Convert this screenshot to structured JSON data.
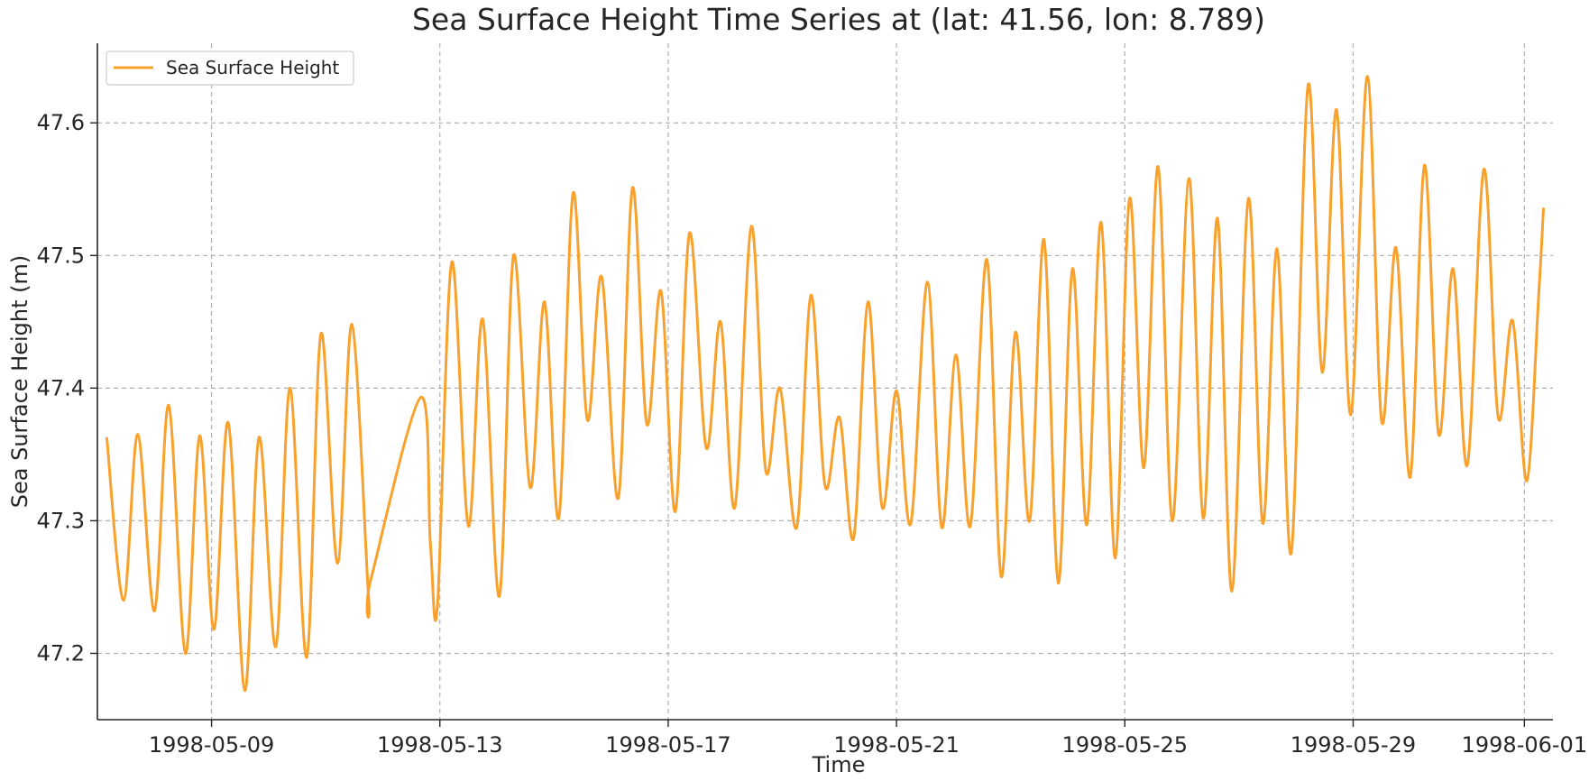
{
  "chart_data": {
    "type": "line",
    "title": "Sea Surface Height Time Series at (lat: 41.56, lon: 8.789)",
    "xlabel": "Time",
    "ylabel": "Sea Surface Height (m)",
    "x_ticks": [
      "1998-05-09",
      "1998-05-13",
      "1998-05-17",
      "1998-05-21",
      "1998-05-25",
      "1998-05-29",
      "1998-06-01"
    ],
    "y_ticks": [
      "47.2",
      "47.3",
      "47.4",
      "47.5",
      "47.6"
    ],
    "xlim": [
      "1998-05-07T00:00",
      "1998-06-01T12:00"
    ],
    "ylim": [
      47.15,
      47.66
    ],
    "grid": true,
    "legend": "upper left",
    "series": [
      {
        "name": "Sea Surface Height",
        "color": "#f9a12d",
        "points": [
          [
            "1998-05-07T04:00",
            47.362
          ],
          [
            "1998-05-07T11:00",
            47.24
          ],
          [
            "1998-05-07T17:00",
            47.365
          ],
          [
            "1998-05-08T00:00",
            47.232
          ],
          [
            "1998-05-08T06:00",
            47.387
          ],
          [
            "1998-05-08T13:00",
            47.2
          ],
          [
            "1998-05-08T19:00",
            47.364
          ],
          [
            "1998-05-09T01:00",
            47.218
          ],
          [
            "1998-05-09T07:00",
            47.374
          ],
          [
            "1998-05-09T14:00",
            47.172
          ],
          [
            "1998-05-09T20:00",
            47.363
          ],
          [
            "1998-05-10T03:00",
            47.205
          ],
          [
            "1998-05-10T09:00",
            47.4
          ],
          [
            "1998-05-10T16:00",
            47.197
          ],
          [
            "1998-05-10T22:00",
            47.441
          ],
          [
            "1998-05-11T05:00",
            47.268
          ],
          [
            "1998-05-11T11:00",
            47.448
          ],
          [
            "1998-05-11T18:00",
            47.244
          ],
          [
            "1998-05-11T19:00",
            47.256
          ],
          [
            "1998-05-12T16:00",
            47.393
          ],
          [
            "1998-05-12T20:00",
            47.283
          ],
          [
            "1998-05-12T23:00",
            47.236
          ],
          [
            "1998-05-13T05:00",
            47.495
          ],
          [
            "1998-05-13T12:00",
            47.296
          ],
          [
            "1998-05-13T18:00",
            47.452
          ],
          [
            "1998-05-14T01:00",
            47.243
          ],
          [
            "1998-05-14T07:00",
            47.5
          ],
          [
            "1998-05-14T14:00",
            47.325
          ],
          [
            "1998-05-14T20:00",
            47.465
          ],
          [
            "1998-05-15T02:00",
            47.302
          ],
          [
            "1998-05-15T08:00",
            47.547
          ],
          [
            "1998-05-15T14:00",
            47.376
          ],
          [
            "1998-05-15T20:00",
            47.484
          ],
          [
            "1998-05-16T03:00",
            47.317
          ],
          [
            "1998-05-16T09:00",
            47.551
          ],
          [
            "1998-05-16T15:00",
            47.373
          ],
          [
            "1998-05-16T21:00",
            47.473
          ],
          [
            "1998-05-17T03:00",
            47.307
          ],
          [
            "1998-05-17T09:00",
            47.517
          ],
          [
            "1998-05-17T16:00",
            47.355
          ],
          [
            "1998-05-17T22:00",
            47.45
          ],
          [
            "1998-05-18T04:00",
            47.31
          ],
          [
            "1998-05-18T11:00",
            47.522
          ],
          [
            "1998-05-18T17:00",
            47.338
          ],
          [
            "1998-05-18T23:00",
            47.4
          ],
          [
            "1998-05-19T06:00",
            47.295
          ],
          [
            "1998-05-19T12:00",
            47.47
          ],
          [
            "1998-05-19T18:00",
            47.326
          ],
          [
            "1998-05-20T00:00",
            47.378
          ],
          [
            "1998-05-20T06:00",
            47.287
          ],
          [
            "1998-05-20T12:00",
            47.465
          ],
          [
            "1998-05-20T18:00",
            47.31
          ],
          [
            "1998-05-21T00:00",
            47.398
          ],
          [
            "1998-05-21T06:00",
            47.298
          ],
          [
            "1998-05-21T13:00",
            47.48
          ],
          [
            "1998-05-21T19:00",
            47.295
          ],
          [
            "1998-05-22T01:00",
            47.425
          ],
          [
            "1998-05-22T07:00",
            47.296
          ],
          [
            "1998-05-22T14:00",
            47.497
          ],
          [
            "1998-05-22T20:00",
            47.258
          ],
          [
            "1998-05-23T02:00",
            47.442
          ],
          [
            "1998-05-23T08:00",
            47.3
          ],
          [
            "1998-05-23T14:00",
            47.512
          ],
          [
            "1998-05-23T20:00",
            47.253
          ],
          [
            "1998-05-24T02:00",
            47.49
          ],
          [
            "1998-05-24T08:00",
            47.297
          ],
          [
            "1998-05-24T14:00",
            47.525
          ],
          [
            "1998-05-24T20:00",
            47.272
          ],
          [
            "1998-05-25T02:00",
            47.543
          ],
          [
            "1998-05-25T08:00",
            47.34
          ],
          [
            "1998-05-25T14:00",
            47.567
          ],
          [
            "1998-05-25T20:00",
            47.3
          ],
          [
            "1998-05-26T03:00",
            47.558
          ],
          [
            "1998-05-26T09:00",
            47.302
          ],
          [
            "1998-05-26T15:00",
            47.528
          ],
          [
            "1998-05-26T21:00",
            47.247
          ],
          [
            "1998-05-27T04:00",
            47.543
          ],
          [
            "1998-05-27T10:00",
            47.298
          ],
          [
            "1998-05-27T16:00",
            47.505
          ],
          [
            "1998-05-27T22:00",
            47.276
          ],
          [
            "1998-05-28T05:00",
            47.628
          ],
          [
            "1998-05-28T11:00",
            47.412
          ],
          [
            "1998-05-28T17:00",
            47.61
          ],
          [
            "1998-05-28T23:00",
            47.38
          ],
          [
            "1998-05-29T06:00",
            47.635
          ],
          [
            "1998-05-29T12:00",
            47.375
          ],
          [
            "1998-05-29T18:00",
            47.506
          ],
          [
            "1998-05-30T00:00",
            47.333
          ],
          [
            "1998-05-30T06:00",
            47.568
          ],
          [
            "1998-05-30T12:00",
            47.365
          ],
          [
            "1998-05-30T18:00",
            47.49
          ],
          [
            "1998-05-31T00:00",
            47.342
          ],
          [
            "1998-05-31T07:00",
            47.565
          ],
          [
            "1998-05-31T13:00",
            47.378
          ],
          [
            "1998-05-31T19:00",
            47.451
          ],
          [
            "1998-06-01T01:00",
            47.33
          ],
          [
            "1998-06-01T06:00",
            47.47
          ],
          [
            "1998-06-01T08:00",
            47.535
          ]
        ]
      }
    ]
  }
}
